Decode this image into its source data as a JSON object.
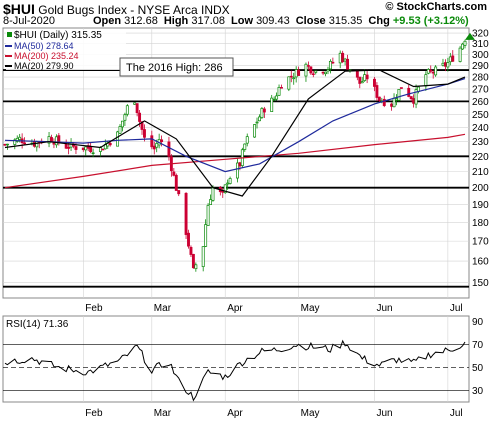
{
  "header": {
    "symbol": "$HUI",
    "name": "Gold Bugs Index - NYSE Arca INDX",
    "date": "8-Jul-2020",
    "open_label": "Open",
    "open": "312.68",
    "high_label": "High",
    "high": "317.08",
    "low_label": "Low",
    "low": "309.43",
    "close_label": "Close",
    "close": "315.35",
    "chg_label": "Chg",
    "chg": "+9.53 (+3.12%)",
    "copyright": "© StockCharts.com"
  },
  "legend": {
    "price": "$HUI (Daily) 315.35",
    "ma50": "MA(50) 278.64",
    "ma200": "MA(200) 235.24",
    "ma20": "MA(20) 279.90"
  },
  "annotation": "The 2016 High: 286",
  "rsi_label": "RSI(14) 71.36",
  "colors": {
    "up": "#0a8a0a",
    "down": "#cc0033",
    "ma50": "#1f2a9c",
    "ma200": "#c8102e",
    "ma20": "#000000",
    "rsi": "#000000",
    "grid": "#d3d3d3"
  },
  "chart_data": [
    {
      "type": "candlestick",
      "title": "$HUI (Daily) 315.35",
      "x_range": [
        "2020-01-02",
        "2020-07-08"
      ],
      "month_ticks": [
        "Feb",
        "Mar",
        "Apr",
        "May",
        "Jun",
        "Jul"
      ],
      "y_ticks": [
        150,
        160,
        170,
        180,
        190,
        200,
        210,
        220,
        230,
        240,
        250,
        260,
        270,
        280,
        290,
        300,
        310,
        320
      ],
      "ylim": [
        143,
        325
      ],
      "y_scale": "log",
      "horizontal_lines": [
        286,
        260,
        220,
        200,
        148
      ],
      "price": [
        [
          "2020-01-02",
          228
        ],
        [
          "2020-01-08",
          232
        ],
        [
          "2020-01-14",
          229
        ],
        [
          "2020-01-20",
          233
        ],
        [
          "2020-01-27",
          227
        ],
        [
          "2020-02-03",
          226
        ],
        [
          "2020-02-10",
          225
        ],
        [
          "2020-02-17",
          235
        ],
        [
          "2020-02-21",
          255
        ],
        [
          "2020-02-24",
          262
        ],
        [
          "2020-02-26",
          245
        ],
        [
          "2020-02-28",
          232
        ],
        [
          "2020-03-03",
          225
        ],
        [
          "2020-03-05",
          232
        ],
        [
          "2020-03-09",
          220
        ],
        [
          "2020-03-12",
          200
        ],
        [
          "2020-03-16",
          175
        ],
        [
          "2020-03-19",
          155
        ],
        [
          "2020-03-23",
          168
        ],
        [
          "2020-03-25",
          190
        ],
        [
          "2020-03-27",
          200
        ],
        [
          "2020-03-31",
          195
        ],
        [
          "2020-04-02",
          205
        ],
        [
          "2020-04-07",
          215
        ],
        [
          "2020-04-09",
          228
        ],
        [
          "2020-04-14",
          245
        ],
        [
          "2020-04-17",
          255
        ],
        [
          "2020-04-21",
          262
        ],
        [
          "2020-04-24",
          275
        ],
        [
          "2020-04-29",
          282
        ],
        [
          "2020-05-04",
          290
        ],
        [
          "2020-05-08",
          285
        ],
        [
          "2020-05-13",
          288
        ],
        [
          "2020-05-18",
          300
        ],
        [
          "2020-05-21",
          290
        ],
        [
          "2020-05-26",
          275
        ],
        [
          "2020-05-29",
          280
        ],
        [
          "2020-06-03",
          262
        ],
        [
          "2020-06-08",
          258
        ],
        [
          "2020-06-12",
          272
        ],
        [
          "2020-06-17",
          262
        ],
        [
          "2020-06-22",
          282
        ],
        [
          "2020-06-26",
          285
        ],
        [
          "2020-07-01",
          292
        ],
        [
          "2020-07-06",
          306
        ],
        [
          "2020-07-08",
          315.35
        ]
      ],
      "ma50": [
        [
          "2020-01-02",
          231
        ],
        [
          "2020-01-20",
          230
        ],
        [
          "2020-02-03",
          229
        ],
        [
          "2020-02-17",
          231
        ],
        [
          "2020-03-02",
          232
        ],
        [
          "2020-03-16",
          220
        ],
        [
          "2020-04-01",
          210
        ],
        [
          "2020-04-15",
          215
        ],
        [
          "2020-05-01",
          230
        ],
        [
          "2020-05-15",
          245
        ],
        [
          "2020-06-01",
          258
        ],
        [
          "2020-06-15",
          266
        ],
        [
          "2020-07-01",
          274
        ],
        [
          "2020-07-08",
          278.64
        ]
      ],
      "ma200": [
        [
          "2020-01-02",
          200
        ],
        [
          "2020-02-03",
          207
        ],
        [
          "2020-03-02",
          214
        ],
        [
          "2020-04-01",
          218
        ],
        [
          "2020-05-01",
          222
        ],
        [
          "2020-06-01",
          228
        ],
        [
          "2020-07-01",
          233
        ],
        [
          "2020-07-08",
          235.24
        ]
      ],
      "ma20": [
        [
          "2020-01-02",
          226
        ],
        [
          "2020-01-20",
          230
        ],
        [
          "2020-02-10",
          226
        ],
        [
          "2020-02-28",
          245
        ],
        [
          "2020-03-12",
          232
        ],
        [
          "2020-03-27",
          200
        ],
        [
          "2020-04-08",
          195
        ],
        [
          "2020-04-20",
          220
        ],
        [
          "2020-05-05",
          262
        ],
        [
          "2020-05-20",
          285
        ],
        [
          "2020-06-03",
          286
        ],
        [
          "2020-06-17",
          272
        ],
        [
          "2020-07-01",
          274
        ],
        [
          "2020-07-08",
          279.9
        ]
      ]
    },
    {
      "type": "line",
      "title": "RSI(14) 71.36",
      "y_ticks": [
        30,
        50,
        70,
        90
      ],
      "ylim": [
        20,
        95
      ],
      "horizontal_lines": [
        70,
        50,
        30
      ],
      "rsi": [
        [
          "2020-01-02",
          55
        ],
        [
          "2020-01-13",
          58
        ],
        [
          "2020-01-24",
          50
        ],
        [
          "2020-02-05",
          46
        ],
        [
          "2020-02-18",
          56
        ],
        [
          "2020-02-25",
          68
        ],
        [
          "2020-03-02",
          48
        ],
        [
          "2020-03-09",
          55
        ],
        [
          "2020-03-13",
          38
        ],
        [
          "2020-03-19",
          24
        ],
        [
          "2020-03-25",
          46
        ],
        [
          "2020-04-01",
          42
        ],
        [
          "2020-04-08",
          55
        ],
        [
          "2020-04-16",
          64
        ],
        [
          "2020-04-23",
          66
        ],
        [
          "2020-04-30",
          70
        ],
        [
          "2020-05-07",
          68
        ],
        [
          "2020-05-14",
          66
        ],
        [
          "2020-05-20",
          72
        ],
        [
          "2020-05-27",
          58
        ],
        [
          "2020-06-03",
          52
        ],
        [
          "2020-06-10",
          57
        ],
        [
          "2020-06-17",
          54
        ],
        [
          "2020-06-24",
          62
        ],
        [
          "2020-07-01",
          65
        ],
        [
          "2020-07-08",
          71.36
        ]
      ]
    }
  ]
}
